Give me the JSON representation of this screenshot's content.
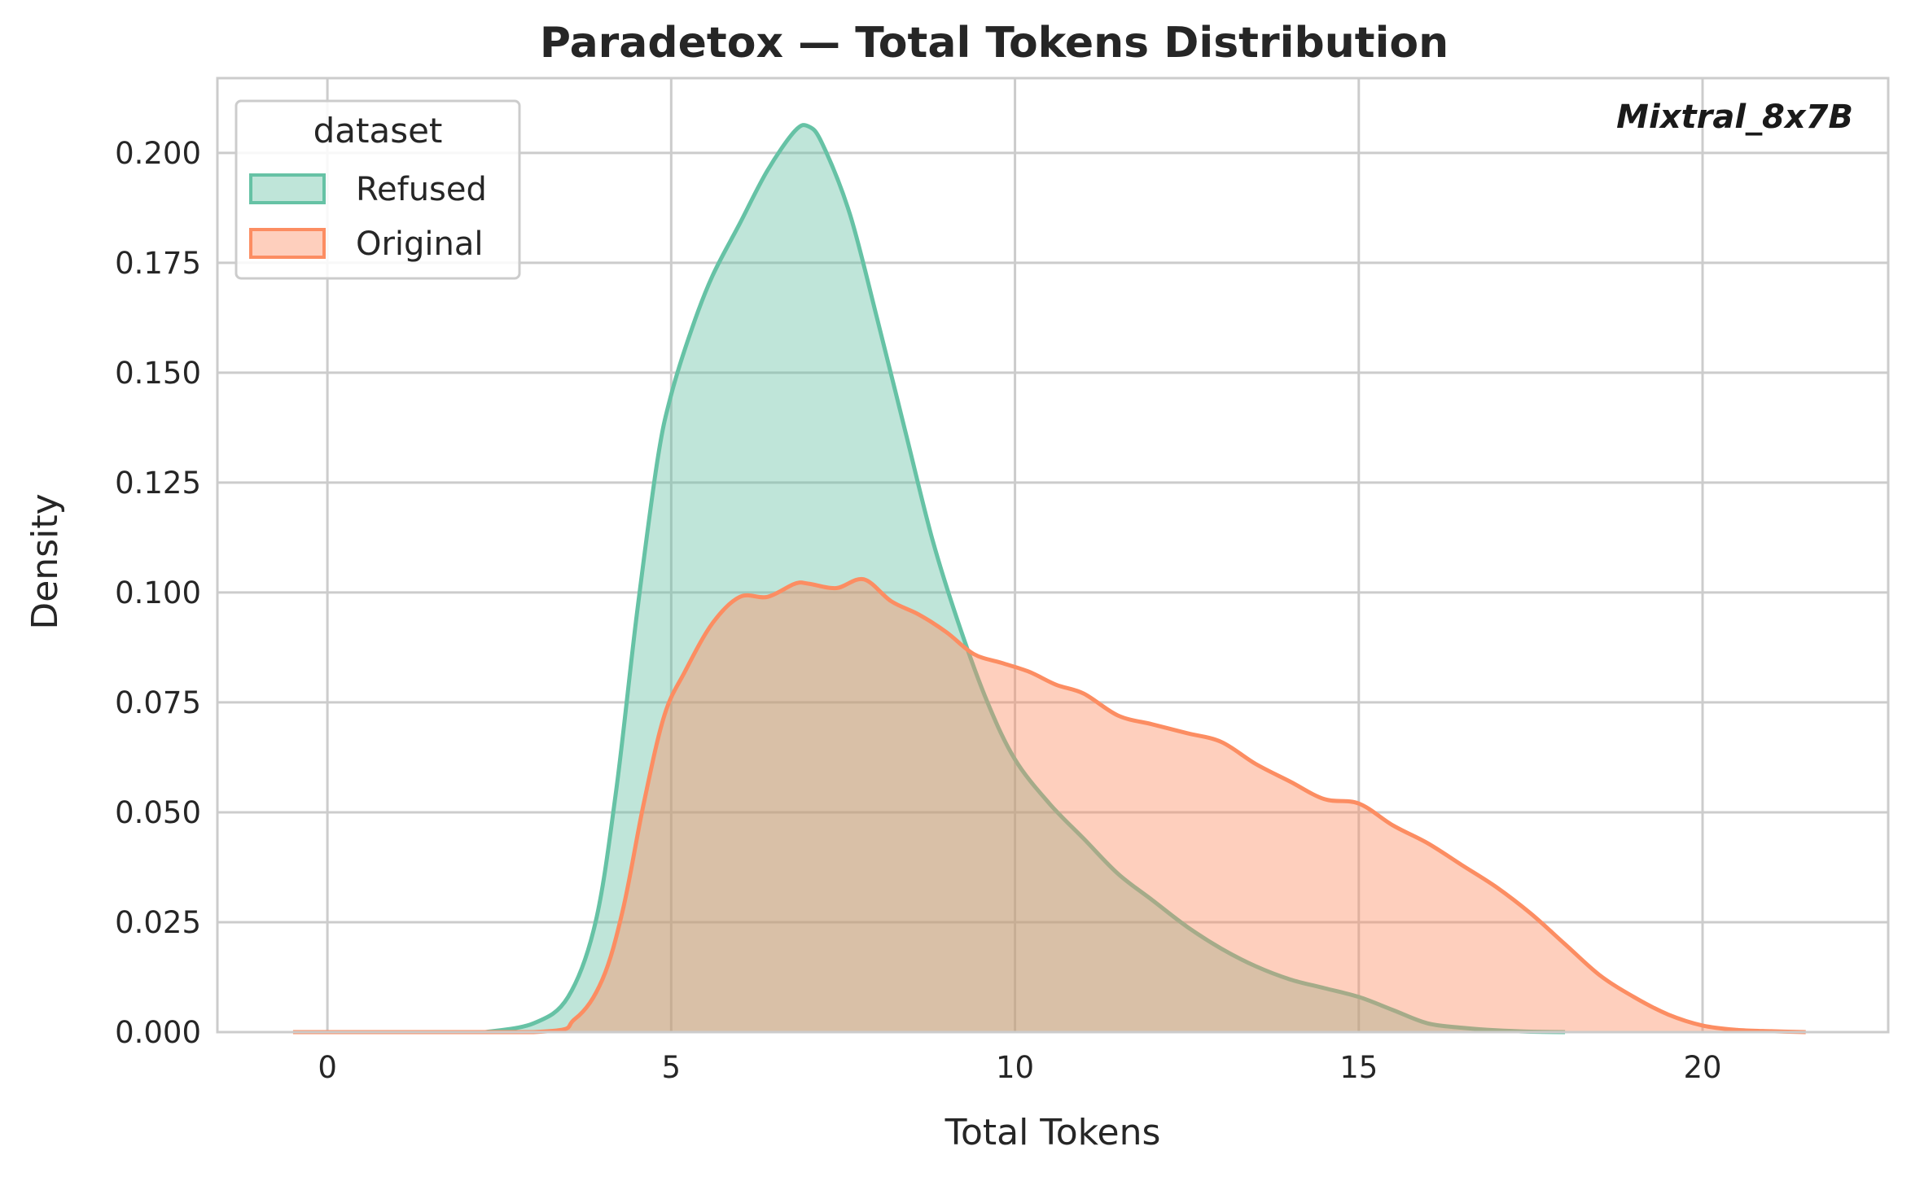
{
  "chart_data": {
    "type": "area",
    "title": "Paradetox — Total Tokens Distribution",
    "xlabel": "Total Tokens",
    "ylabel": "Density",
    "annotation": "Mixtral_8x7B",
    "xlim": [
      -1.6,
      22.7
    ],
    "ylim": [
      0,
      0.217
    ],
    "x_ticks": [
      0,
      5,
      10,
      15,
      20
    ],
    "x_tick_labels": [
      "0",
      "5",
      "10",
      "15",
      "20"
    ],
    "y_ticks": [
      0,
      0.025,
      0.05,
      0.075,
      0.1,
      0.125,
      0.15,
      0.175,
      0.2
    ],
    "y_tick_labels": [
      "0.000",
      "0.025",
      "0.050",
      "0.075",
      "0.100",
      "0.125",
      "0.150",
      "0.175",
      "0.200"
    ],
    "grid": true,
    "legend": {
      "title": "dataset",
      "position": "top-left"
    },
    "series": [
      {
        "name": "Refused",
        "color": "#66c2a5",
        "x": [
          2.3,
          3.0,
          3.5,
          3.9,
          4.2,
          4.5,
          4.8,
          5.0,
          5.3,
          5.6,
          6.0,
          6.4,
          6.8,
          7.0,
          7.2,
          7.6,
          8.0,
          8.4,
          8.8,
          9.2,
          9.6,
          10.0,
          10.5,
          11.0,
          11.5,
          12.0,
          12.5,
          13.0,
          13.5,
          14.0,
          14.5,
          15.0,
          15.5,
          16.0,
          16.5,
          17.0,
          17.5,
          18.0
        ],
        "values": [
          0.0,
          0.002,
          0.008,
          0.025,
          0.055,
          0.095,
          0.13,
          0.145,
          0.16,
          0.172,
          0.184,
          0.196,
          0.205,
          0.206,
          0.202,
          0.186,
          0.162,
          0.137,
          0.112,
          0.092,
          0.075,
          0.062,
          0.052,
          0.044,
          0.036,
          0.03,
          0.024,
          0.019,
          0.015,
          0.012,
          0.01,
          0.008,
          0.005,
          0.002,
          0.001,
          0.0004,
          0.0001,
          0.0
        ]
      },
      {
        "name": "Original",
        "color": "#fc8d62",
        "x": [
          -0.5,
          3.0,
          3.6,
          4.0,
          4.3,
          4.6,
          4.9,
          5.2,
          5.6,
          6.0,
          6.4,
          6.8,
          7.0,
          7.4,
          7.8,
          8.2,
          8.6,
          9.0,
          9.4,
          9.8,
          10.2,
          10.6,
          11.0,
          11.5,
          12.0,
          12.5,
          13.0,
          13.5,
          14.0,
          14.5,
          15.0,
          15.5,
          16.0,
          16.5,
          17.0,
          17.5,
          18.0,
          18.5,
          19.0,
          19.5,
          20.0,
          20.5,
          21.0,
          21.5
        ],
        "values": [
          0.0,
          0.0,
          0.003,
          0.012,
          0.028,
          0.052,
          0.072,
          0.082,
          0.093,
          0.099,
          0.099,
          0.102,
          0.102,
          0.101,
          0.103,
          0.098,
          0.095,
          0.091,
          0.086,
          0.084,
          0.082,
          0.079,
          0.077,
          0.072,
          0.07,
          0.068,
          0.066,
          0.061,
          0.057,
          0.053,
          0.052,
          0.047,
          0.043,
          0.038,
          0.033,
          0.027,
          0.02,
          0.013,
          0.008,
          0.004,
          0.0015,
          0.0005,
          0.0002,
          0.0
        ]
      }
    ]
  }
}
